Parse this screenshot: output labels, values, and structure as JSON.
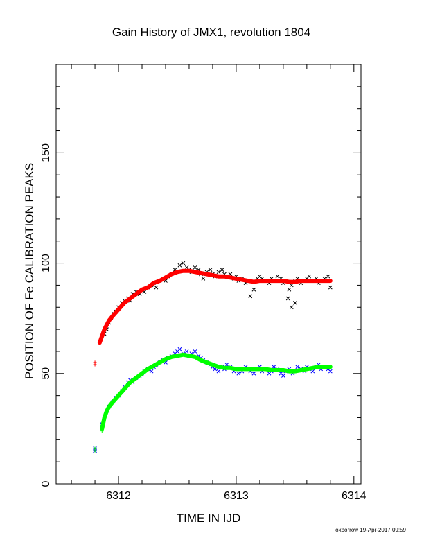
{
  "chart_data": {
    "type": "scatter",
    "title": "Gain History of JMX1, revolution 1804",
    "xlabel": "TIME IN IJD",
    "ylabel": "POSITION OF Fe CALIBRATION PEAKS",
    "xlim": [
      6311.47,
      6314.06
    ],
    "ylim": [
      0,
      190
    ],
    "xticks": [
      6312,
      6313,
      6314
    ],
    "yticks": [
      0,
      50,
      100,
      150
    ],
    "grid": false,
    "series": [
      {
        "color": "#000000",
        "marker": "x",
        "points": [
          [
            6311.88,
            68
          ],
          [
            6311.9,
            70
          ],
          [
            6311.92,
            73
          ],
          [
            6311.94,
            75
          ],
          [
            6311.96,
            77
          ],
          [
            6311.98,
            78
          ],
          [
            6312.0,
            80
          ],
          [
            6312.03,
            82
          ],
          [
            6312.05,
            83
          ],
          [
            6312.08,
            84
          ],
          [
            6312.1,
            83
          ],
          [
            6312.12,
            86
          ],
          [
            6312.15,
            87
          ],
          [
            6312.18,
            86
          ],
          [
            6312.2,
            88
          ],
          [
            6312.22,
            87
          ],
          [
            6312.25,
            89
          ],
          [
            6312.28,
            90
          ],
          [
            6312.3,
            91
          ],
          [
            6312.32,
            89
          ],
          [
            6312.35,
            92
          ],
          [
            6312.38,
            93
          ],
          [
            6312.4,
            92
          ],
          [
            6312.42,
            94
          ],
          [
            6312.45,
            95
          ],
          [
            6312.48,
            97
          ],
          [
            6312.5,
            96
          ],
          [
            6312.52,
            99
          ],
          [
            6312.55,
            100
          ],
          [
            6312.58,
            98
          ],
          [
            6312.6,
            97
          ],
          [
            6312.62,
            96
          ],
          [
            6312.65,
            98
          ],
          [
            6312.68,
            97
          ],
          [
            6312.7,
            95
          ],
          [
            6312.72,
            93
          ],
          [
            6312.75,
            96
          ],
          [
            6312.78,
            97
          ],
          [
            6312.8,
            95
          ],
          [
            6312.82,
            94
          ],
          [
            6312.85,
            96
          ],
          [
            6312.88,
            97
          ],
          [
            6312.9,
            95
          ],
          [
            6312.92,
            94
          ],
          [
            6312.95,
            95
          ],
          [
            6312.98,
            93
          ],
          [
            6313.0,
            94
          ],
          [
            6313.02,
            92
          ],
          [
            6313.05,
            93
          ],
          [
            6313.08,
            91
          ],
          [
            6313.1,
            92
          ],
          [
            6313.12,
            85
          ],
          [
            6313.15,
            88
          ],
          [
            6313.18,
            93
          ],
          [
            6313.2,
            94
          ],
          [
            6313.22,
            93
          ],
          [
            6313.25,
            92
          ],
          [
            6313.28,
            91
          ],
          [
            6313.3,
            93
          ],
          [
            6313.32,
            92
          ],
          [
            6313.35,
            94
          ],
          [
            6313.38,
            93
          ],
          [
            6313.4,
            91
          ],
          [
            6313.42,
            92
          ],
          [
            6313.45,
            88
          ],
          [
            6313.47,
            90
          ],
          [
            6313.5,
            92
          ],
          [
            6313.52,
            93
          ],
          [
            6313.55,
            91
          ],
          [
            6313.58,
            92
          ],
          [
            6313.6,
            93
          ],
          [
            6313.62,
            94
          ],
          [
            6313.65,
            92
          ],
          [
            6313.68,
            93
          ],
          [
            6313.7,
            91
          ],
          [
            6313.72,
            92
          ],
          [
            6313.75,
            93
          ],
          [
            6313.78,
            94
          ],
          [
            6313.8,
            89
          ],
          [
            6313.47,
            80
          ],
          [
            6313.5,
            82
          ],
          [
            6313.44,
            84
          ]
        ]
      },
      {
        "color": "#ff0000",
        "marker": "line",
        "points": [
          [
            6311.84,
            64
          ],
          [
            6311.86,
            67
          ],
          [
            6311.88,
            70
          ],
          [
            6311.9,
            72
          ],
          [
            6311.92,
            74
          ],
          [
            6311.95,
            76
          ],
          [
            6312.0,
            79
          ],
          [
            6312.05,
            82
          ],
          [
            6312.1,
            84
          ],
          [
            6312.15,
            86
          ],
          [
            6312.2,
            88
          ],
          [
            6312.25,
            89
          ],
          [
            6312.3,
            91
          ],
          [
            6312.35,
            92
          ],
          [
            6312.4,
            93.5
          ],
          [
            6312.45,
            95
          ],
          [
            6312.5,
            96
          ],
          [
            6312.55,
            96.5
          ],
          [
            6312.6,
            96.5
          ],
          [
            6312.65,
            96
          ],
          [
            6312.7,
            95.5
          ],
          [
            6312.75,
            95
          ],
          [
            6312.8,
            94.5
          ],
          [
            6312.85,
            94
          ],
          [
            6312.9,
            94
          ],
          [
            6312.95,
            93.5
          ],
          [
            6313.0,
            93
          ],
          [
            6313.05,
            92.5
          ],
          [
            6313.1,
            92
          ],
          [
            6313.15,
            91.5
          ],
          [
            6313.2,
            92
          ],
          [
            6313.25,
            92
          ],
          [
            6313.3,
            92
          ],
          [
            6313.35,
            92
          ],
          [
            6313.4,
            92
          ],
          [
            6313.45,
            91.5
          ],
          [
            6313.5,
            91.5
          ],
          [
            6313.55,
            92
          ],
          [
            6313.6,
            92
          ],
          [
            6313.65,
            92
          ],
          [
            6313.7,
            92
          ],
          [
            6313.75,
            92
          ],
          [
            6313.8,
            92
          ]
        ]
      },
      {
        "color": "#ff0000",
        "marker": "+",
        "points": [
          [
            6311.8,
            55
          ],
          [
            6311.8,
            54
          ],
          [
            6311.84,
            64
          ],
          [
            6311.85,
            65
          ]
        ]
      },
      {
        "color": "#0000ff",
        "marker": "x",
        "points": [
          [
            6311.8,
            15
          ],
          [
            6311.8,
            16
          ],
          [
            6311.86,
            27
          ],
          [
            6311.88,
            30
          ],
          [
            6311.9,
            33
          ],
          [
            6311.92,
            35
          ],
          [
            6311.95,
            37
          ],
          [
            6311.98,
            39
          ],
          [
            6312.0,
            40
          ],
          [
            6312.03,
            42
          ],
          [
            6312.05,
            44
          ],
          [
            6312.08,
            46
          ],
          [
            6312.1,
            47
          ],
          [
            6312.12,
            46
          ],
          [
            6312.15,
            48
          ],
          [
            6312.18,
            49
          ],
          [
            6312.2,
            50
          ],
          [
            6312.22,
            51
          ],
          [
            6312.25,
            52
          ],
          [
            6312.28,
            51
          ],
          [
            6312.3,
            53
          ],
          [
            6312.32,
            54
          ],
          [
            6312.35,
            55
          ],
          [
            6312.38,
            56
          ],
          [
            6312.4,
            55
          ],
          [
            6312.42,
            57
          ],
          [
            6312.45,
            58
          ],
          [
            6312.48,
            59
          ],
          [
            6312.5,
            60
          ],
          [
            6312.52,
            61
          ],
          [
            6312.55,
            59
          ],
          [
            6312.58,
            60
          ],
          [
            6312.6,
            58
          ],
          [
            6312.62,
            59
          ],
          [
            6312.65,
            60
          ],
          [
            6312.68,
            58
          ],
          [
            6312.7,
            57
          ],
          [
            6312.72,
            56
          ],
          [
            6312.75,
            55
          ],
          [
            6312.78,
            54
          ],
          [
            6312.8,
            53
          ],
          [
            6312.82,
            52
          ],
          [
            6312.85,
            51
          ],
          [
            6312.88,
            53
          ],
          [
            6312.9,
            52
          ],
          [
            6312.92,
            54
          ],
          [
            6312.95,
            53
          ],
          [
            6312.98,
            51
          ],
          [
            6313.0,
            52
          ],
          [
            6313.02,
            50
          ],
          [
            6313.05,
            51
          ],
          [
            6313.08,
            53
          ],
          [
            6313.1,
            52
          ],
          [
            6313.12,
            51
          ],
          [
            6313.15,
            50
          ],
          [
            6313.18,
            52
          ],
          [
            6313.2,
            53
          ],
          [
            6313.22,
            51
          ],
          [
            6313.25,
            52
          ],
          [
            6313.28,
            50
          ],
          [
            6313.3,
            51
          ],
          [
            6313.32,
            53
          ],
          [
            6313.35,
            52
          ],
          [
            6313.38,
            50
          ],
          [
            6313.4,
            49
          ],
          [
            6313.42,
            51
          ],
          [
            6313.45,
            52
          ],
          [
            6313.48,
            50
          ],
          [
            6313.5,
            51
          ],
          [
            6313.52,
            53
          ],
          [
            6313.55,
            52
          ],
          [
            6313.58,
            51
          ],
          [
            6313.6,
            53
          ],
          [
            6313.62,
            52
          ],
          [
            6313.65,
            51
          ],
          [
            6313.68,
            53
          ],
          [
            6313.7,
            54
          ],
          [
            6313.72,
            52
          ],
          [
            6313.75,
            53
          ],
          [
            6313.78,
            52
          ],
          [
            6313.8,
            51
          ]
        ]
      },
      {
        "color": "#00ff00",
        "marker": "line",
        "points": [
          [
            6311.86,
            25
          ],
          [
            6311.88,
            30
          ],
          [
            6311.9,
            33
          ],
          [
            6311.92,
            35
          ],
          [
            6311.95,
            37
          ],
          [
            6312.0,
            40
          ],
          [
            6312.05,
            43
          ],
          [
            6312.1,
            46
          ],
          [
            6312.15,
            48
          ],
          [
            6312.2,
            50
          ],
          [
            6312.25,
            52
          ],
          [
            6312.3,
            53.5
          ],
          [
            6312.35,
            55
          ],
          [
            6312.4,
            56.5
          ],
          [
            6312.45,
            57.5
          ],
          [
            6312.5,
            58
          ],
          [
            6312.55,
            58.5
          ],
          [
            6312.6,
            58
          ],
          [
            6312.65,
            57.5
          ],
          [
            6312.7,
            56
          ],
          [
            6312.75,
            55
          ],
          [
            6312.8,
            54
          ],
          [
            6312.85,
            53
          ],
          [
            6312.9,
            52.5
          ],
          [
            6312.95,
            52.5
          ],
          [
            6313.0,
            52
          ],
          [
            6313.05,
            52
          ],
          [
            6313.1,
            52
          ],
          [
            6313.15,
            52
          ],
          [
            6313.2,
            52
          ],
          [
            6313.25,
            52
          ],
          [
            6313.3,
            51.5
          ],
          [
            6313.35,
            51.5
          ],
          [
            6313.4,
            51.5
          ],
          [
            6313.45,
            51
          ],
          [
            6313.5,
            51
          ],
          [
            6313.55,
            51.5
          ],
          [
            6313.6,
            52
          ],
          [
            6313.65,
            52.5
          ],
          [
            6313.7,
            53
          ],
          [
            6313.75,
            53
          ],
          [
            6313.8,
            53
          ]
        ]
      },
      {
        "color": "#00ff00",
        "marker": "+",
        "points": [
          [
            6311.8,
            15
          ],
          [
            6311.8,
            16
          ],
          [
            6311.86,
            24
          ],
          [
            6311.86,
            25
          ]
        ]
      }
    ]
  },
  "footer_text": "oxborrow 19-Apr-2017 09:59"
}
